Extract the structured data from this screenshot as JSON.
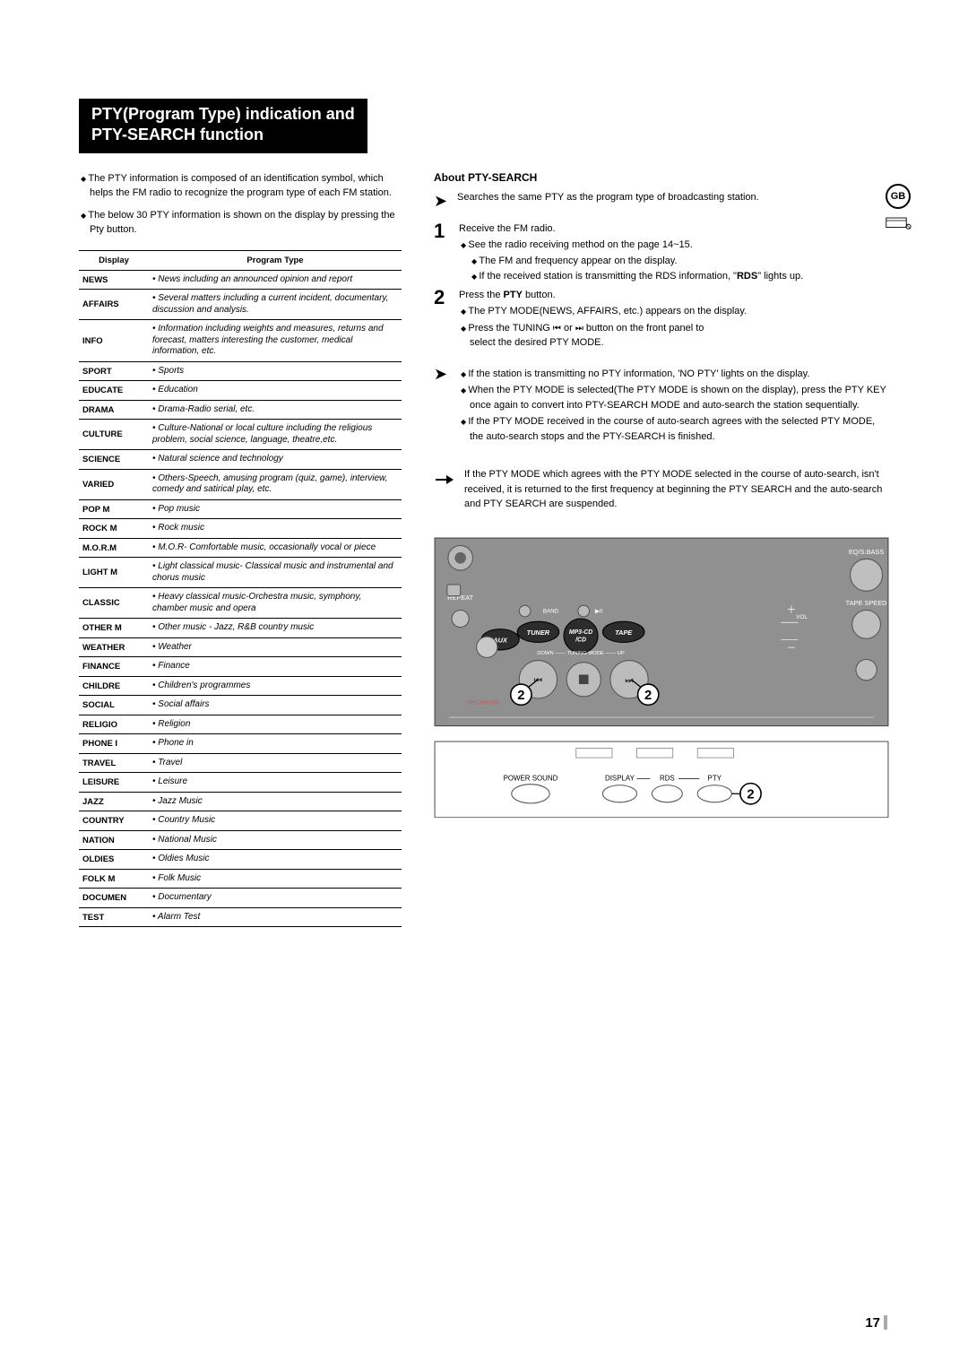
{
  "title_line1": "PTY(Program Type) indication and",
  "title_line2": "PTY-SEARCH function",
  "region_badge": "GB",
  "intro": {
    "p1": "The PTY information is composed of an identification symbol, which helps the FM radio to recognize the program type of each FM station.",
    "p2": "The below 30 PTY information is shown on the display by pressing the Pty button."
  },
  "table_headers": {
    "display": "Display",
    "program_type": "Program Type"
  },
  "pty_rows": [
    {
      "d": "NEWS",
      "t": "• News including an announced opinion and report"
    },
    {
      "d": "AFFAIRS",
      "t": "• Several matters including a current incident, documentary, discussion and analysis."
    },
    {
      "d": "INFO",
      "t": "•  Information including weights and measures, returns and forecast, matters interesting the customer, medical information, etc."
    },
    {
      "d": "SPORT",
      "t": "• Sports"
    },
    {
      "d": "EDUCATE",
      "t": "• Education"
    },
    {
      "d": "DRAMA",
      "t": "• Drama-Radio serial, etc."
    },
    {
      "d": "CULTURE",
      "t": "• Culture-National or local culture including the religious problem, social science, language, theatre,etc."
    },
    {
      "d": "SCIENCE",
      "t": "• Natural science and technology"
    },
    {
      "d": "VARIED",
      "t": "• Others-Speech, amusing program (quiz, game), interview, comedy and satirical play, etc."
    },
    {
      "d": "POP M",
      "t": "• Pop music"
    },
    {
      "d": "ROCK M",
      "t": "• Rock music"
    },
    {
      "d": "M.O.R.M",
      "t": "• M.O.R- Comfortable music, occasionally vocal or piece"
    },
    {
      "d": "LIGHT M",
      "t": "• Light classical music- Classical music and instrumental and chorus music"
    },
    {
      "d": "CLASSIC",
      "t": "• Heavy classical  music-Orchestra music, symphony, chamber music and opera"
    },
    {
      "d": "OTHER M",
      "t": "• Other music - Jazz, R&B country music"
    },
    {
      "d": "WEATHER",
      "t": "• Weather"
    },
    {
      "d": "FINANCE",
      "t": "• Finance"
    },
    {
      "d": "CHILDRE",
      "t": "• Children's programmes"
    },
    {
      "d": "SOCIAL",
      "t": "• Social affairs"
    },
    {
      "d": "RELIGIO",
      "t": "• Religion"
    },
    {
      "d": "PHONE I",
      "t": "• Phone in"
    },
    {
      "d": "TRAVEL",
      "t": "• Travel"
    },
    {
      "d": "LEISURE",
      "t": "• Leisure"
    },
    {
      "d": "JAZZ",
      "t": "• Jazz Music"
    },
    {
      "d": "COUNTRY",
      "t": "• Country Music"
    },
    {
      "d": "NATION",
      "t": "• National Music"
    },
    {
      "d": "OLDIES",
      "t": "• Oldies Music"
    },
    {
      "d": "FOLK M",
      "t": "• Folk Music"
    },
    {
      "d": "DOCUMEN",
      "t": "• Documentary"
    },
    {
      "d": "TEST",
      "t": "• Alarm Test"
    }
  ],
  "about_heading": "About PTY-SEARCH",
  "about_sub": "Searches the same PTY as the program type of broadcasting station.",
  "step1": {
    "num": "1",
    "main": "Receive the FM radio.",
    "b1": "See the radio receiving method on the page 14~15.",
    "b2": "The FM and frequency appear on the display.",
    "b3_a": "If the received station is transmitting the RDS information, \"",
    "b3_rds": "RDS",
    "b3_c": "\" lights up."
  },
  "step2": {
    "num": "2",
    "main_a": "Press the ",
    "main_b": "PTY",
    "main_c": " button.",
    "b1": "The PTY MODE(NEWS, AFFAIRS, etc.) appears on the display.",
    "b2_a": "Press the TUNING ",
    "b2_or": " or ",
    "b2_c": " button on the front panel to",
    "b2_d": "select the desired PTY MODE."
  },
  "notes": {
    "n1": "If the station is transmitting no PTY information, 'NO PTY' lights on the display.",
    "n2": "When the PTY MODE is selected(The PTY MODE is shown on the display), press the PTY KEY once again to convert into PTY-SEARCH MODE and auto-search the station sequentially.",
    "n3": "If the PTY MODE received in the course of auto-search agrees with the selected PTY MODE, the auto-search stops and the PTY-SEARCH is finished."
  },
  "hand_note": "If the PTY MODE which agrees with the PTY MODE selected in the course of auto-search, isn't received, it is returned to the first frequency at beginning the PTY SEARCH and the auto-search and PTY SEARCH are suspended.",
  "panel_labels": {
    "eq": "EQ/S.BASS",
    "tape": "TAPE SPEED",
    "repeat": "REPEAT",
    "aux": "AUX",
    "tuner": "TUNER",
    "mp3": "MP3-CD",
    "cd": "/CD",
    "tape2": "TAPE",
    "band": "BAND",
    "vol": "VOL",
    "tuning": "DOWN —— TUNING MODE —— UP",
    "rec": "REC/PAUSE",
    "power": "POWER SOUND",
    "display": "DISPLAY",
    "rds": "RDS",
    "pty": "PTY"
  },
  "page_number": "17"
}
